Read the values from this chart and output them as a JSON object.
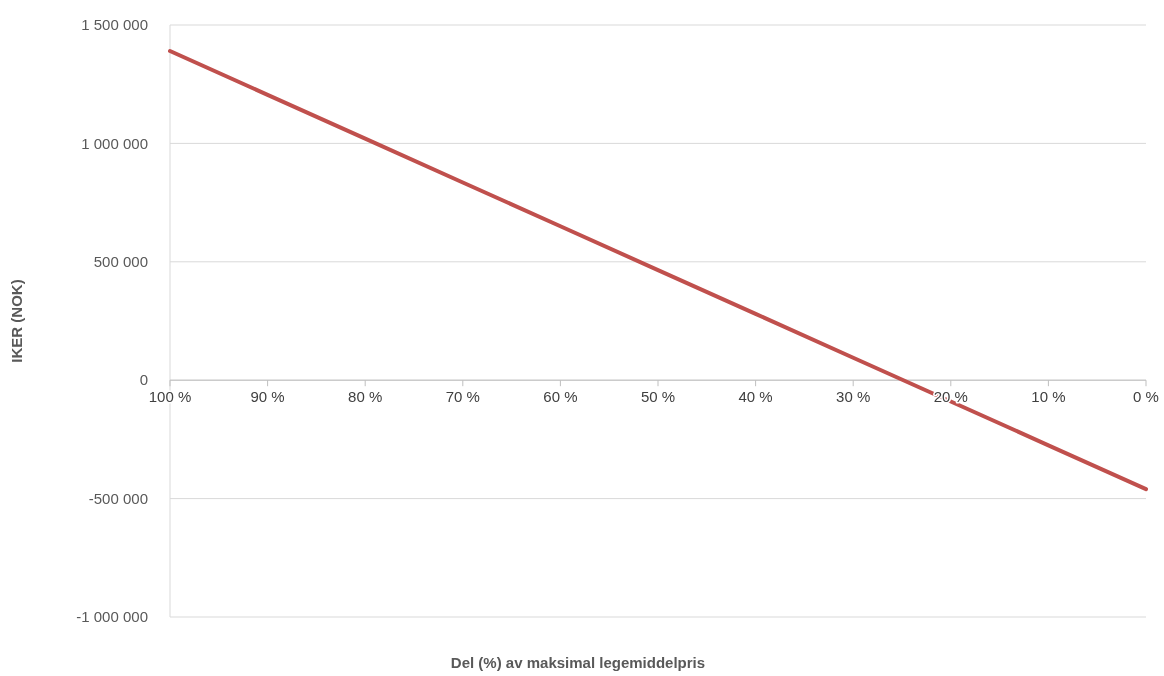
{
  "chart_data": {
    "type": "line",
    "xlabel": "Del (%) av maksimal legemiddelpris",
    "ylabel": "IKER (NOK)",
    "categories": [
      "100 %",
      "90 %",
      "80 %",
      "70 %",
      "60 %",
      "50 %",
      "40 %",
      "30 %",
      "20 %",
      "10 %",
      "0 %"
    ],
    "series": [
      {
        "color": "#c0504d",
        "values": [
          1390000,
          1205000,
          1020000,
          835000,
          650000,
          465000,
          280000,
          95000,
          -90000,
          -275000,
          -460000
        ]
      }
    ],
    "ylim": [
      -1000000,
      1500000
    ],
    "yticks": [
      {
        "value": -1000000,
        "label": "-1 000 000"
      },
      {
        "value": -500000,
        "label": "-500 000"
      },
      0,
      {
        "value": 500000,
        "label": "500 000"
      },
      {
        "value": 1000000,
        "label": "1 000 000"
      },
      {
        "value": 1500000,
        "label": "1 500 000"
      }
    ],
    "grid": "y",
    "marker": "none",
    "line_style": "solid"
  }
}
